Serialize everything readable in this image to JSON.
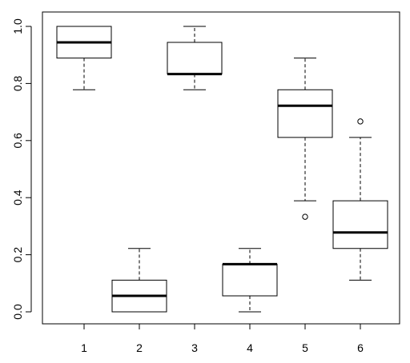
{
  "chart_data": {
    "type": "boxplot",
    "title": "",
    "xlabel": "",
    "ylabel": "",
    "ylim": [
      -0.04,
      1.04
    ],
    "y_ticks": [
      "0.0",
      "0.2",
      "0.4",
      "0.6",
      "0.8",
      "1.0"
    ],
    "y_tick_values": [
      0.0,
      0.2,
      0.4,
      0.6,
      0.8,
      1.0
    ],
    "categories": [
      "1",
      "2",
      "3",
      "4",
      "5",
      "6"
    ],
    "boxes": [
      {
        "category": "1",
        "whisker_low": 0.778,
        "q1": 0.889,
        "median": 0.944,
        "q3": 1.0,
        "whisker_high": 1.0,
        "outliers": []
      },
      {
        "category": "2",
        "whisker_low": 0.0,
        "q1": 0.0,
        "median": 0.056,
        "q3": 0.111,
        "whisker_high": 0.222,
        "outliers": []
      },
      {
        "category": "3",
        "whisker_low": 0.778,
        "q1": 0.833,
        "median": 0.833,
        "q3": 0.944,
        "whisker_high": 1.0,
        "outliers": []
      },
      {
        "category": "4",
        "whisker_low": 0.0,
        "q1": 0.056,
        "median": 0.167,
        "q3": 0.167,
        "whisker_high": 0.222,
        "outliers": []
      },
      {
        "category": "5",
        "whisker_low": 0.389,
        "q1": 0.611,
        "median": 0.722,
        "q3": 0.778,
        "whisker_high": 0.889,
        "outliers": [
          0.333
        ]
      },
      {
        "category": "6",
        "whisker_low": 0.111,
        "q1": 0.222,
        "median": 0.278,
        "q3": 0.389,
        "whisker_high": 0.611,
        "outliers": [
          0.667
        ]
      }
    ],
    "grid": false,
    "legend": "none"
  }
}
